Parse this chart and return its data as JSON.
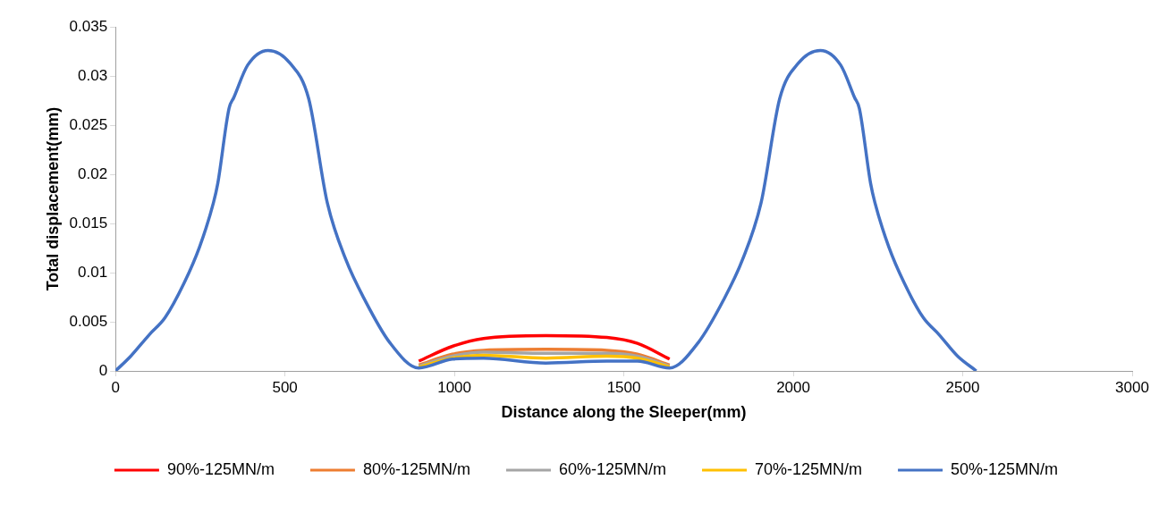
{
  "chart_data": {
    "type": "line",
    "xlabel": "Distance along the Sleeper(mm)",
    "ylabel": "Total displacement(mm)",
    "x": [
      0,
      45,
      100,
      146,
      202,
      248,
      289,
      302,
      335,
      349,
      390,
      450,
      515,
      570,
      625,
      680,
      736,
      809,
      895,
      994,
      1086,
      1270,
      1450,
      1540,
      1635,
      1720,
      1794,
      1850,
      1905,
      1960,
      2015,
      2080,
      2140,
      2181,
      2195,
      2228,
      2241,
      2282,
      2328,
      2384,
      2430,
      2485,
      2540
    ],
    "series": [
      {
        "name": "90%-125MN/m",
        "color": "#ff0000",
        "values": [
          null,
          null,
          null,
          null,
          null,
          null,
          null,
          null,
          null,
          null,
          null,
          null,
          null,
          null,
          null,
          null,
          null,
          null,
          0.001,
          0.0025,
          0.0033,
          0.0036,
          0.0034,
          0.0028,
          0.0012,
          null,
          null,
          null,
          null,
          null,
          null,
          null,
          null,
          null,
          null,
          null,
          null,
          null,
          null,
          null,
          null,
          null,
          null
        ]
      },
      {
        "name": "80%-125MN/m",
        "color": "#ed7d31",
        "values": [
          null,
          null,
          null,
          null,
          null,
          null,
          null,
          null,
          null,
          null,
          null,
          null,
          null,
          null,
          null,
          null,
          null,
          null,
          0.0006,
          0.0017,
          0.0021,
          0.0022,
          0.0021,
          0.0017,
          0.0006,
          null,
          null,
          null,
          null,
          null,
          null,
          null,
          null,
          null,
          null,
          null,
          null,
          null,
          null,
          null,
          null,
          null,
          null
        ]
      },
      {
        "name": "60%-125MN/m",
        "color": "#a5a5a5",
        "values": [
          null,
          null,
          null,
          null,
          null,
          null,
          null,
          null,
          null,
          null,
          null,
          null,
          null,
          null,
          null,
          null,
          null,
          null,
          0.0005,
          0.0015,
          0.0019,
          0.0018,
          0.0018,
          0.0015,
          0.0005,
          null,
          null,
          null,
          null,
          null,
          null,
          null,
          null,
          null,
          null,
          null,
          null,
          null,
          null,
          null,
          null,
          null,
          null
        ]
      },
      {
        "name": "70%-125MN/m",
        "color": "#ffc000",
        "values": [
          null,
          null,
          null,
          null,
          null,
          null,
          null,
          null,
          null,
          null,
          null,
          null,
          null,
          null,
          null,
          null,
          null,
          null,
          0.0004,
          0.0013,
          0.0016,
          0.0013,
          0.0015,
          0.0013,
          0.0004,
          null,
          null,
          null,
          null,
          null,
          null,
          null,
          null,
          null,
          null,
          null,
          null,
          null,
          null,
          null,
          null,
          null,
          null
        ]
      },
      {
        "name": "50%-125MN/m",
        "color": "#4472c4",
        "values": [
          0,
          0.0015,
          0.0037,
          0.0054,
          0.0089,
          0.0126,
          0.0171,
          0.0191,
          0.0267,
          0.0278,
          0.0311,
          0.0326,
          0.0313,
          0.0277,
          0.0171,
          0.0113,
          0.0072,
          0.0029,
          0.0003,
          0.0012,
          0.0013,
          0.0008,
          0.001,
          0.001,
          0.0003,
          0.0029,
          0.0072,
          0.0113,
          0.0171,
          0.0277,
          0.0313,
          0.0326,
          0.0311,
          0.0278,
          0.0267,
          0.0191,
          0.0171,
          0.0126,
          0.0089,
          0.0054,
          0.0037,
          0.0015,
          0
        ]
      }
    ],
    "xlim": [
      0,
      3000
    ],
    "xticks": [
      0,
      500,
      1000,
      1500,
      2000,
      2500,
      3000
    ],
    "ylim": [
      0,
      0.035
    ],
    "yticks": [
      0,
      0.005,
      0.01,
      0.015,
      0.02,
      0.025,
      0.03,
      0.035
    ],
    "grid": false,
    "legend": "bottom",
    "marker": "none",
    "line_style": "solid"
  }
}
